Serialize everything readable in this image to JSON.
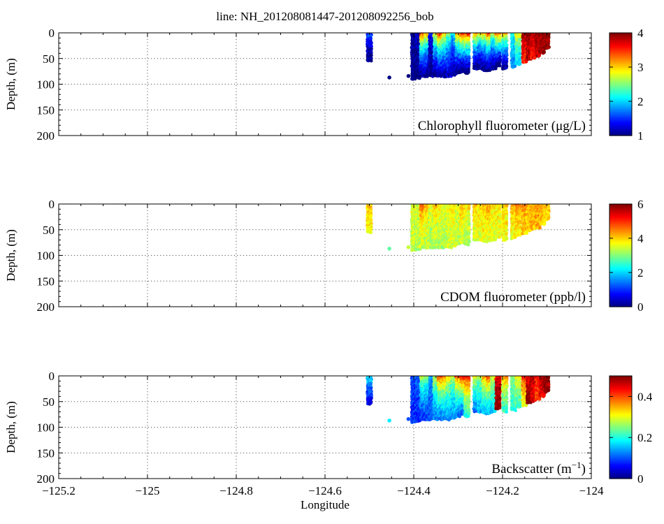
{
  "title": "line: NH_201208081447-201208092256_bob",
  "chart_data": [
    {
      "type": "scatter",
      "panel_label": "Chlorophyll fluorometer (μg/L)",
      "xlabel": "",
      "ylabel": "Depth, (m)",
      "xlim": [
        -125.2,
        -124
      ],
      "ylim": [
        200,
        0
      ],
      "y_reversed": true,
      "grid": true,
      "yticks": [
        0,
        50,
        100,
        150,
        200
      ],
      "xticks": [
        -125.2,
        -125,
        -124.8,
        -124.6,
        -124.4,
        -124.2,
        -124
      ],
      "show_xtick_labels": false,
      "colorbar": {
        "colormap": "jet",
        "min": 1,
        "max": 4,
        "ticks": [
          1,
          2,
          3,
          4
        ]
      },
      "profiles": [
        {
          "x": -124.5,
          "depth": [
            0,
            55
          ],
          "top": 1.8,
          "bottom": 1.0
        },
        {
          "x": -124.455,
          "depth": [
            87,
            87
          ],
          "top": 1.0,
          "bottom": 1.0
        },
        {
          "x": -124.412,
          "depth": [
            84,
            84
          ],
          "top": 1.0,
          "bottom": 1.0
        },
        {
          "x": -124.4,
          "depth": [
            0,
            92
          ],
          "top": 1.1,
          "bottom": 1.0
        },
        {
          "x": -124.39,
          "depth": [
            0,
            88
          ],
          "top": 1.2,
          "bottom": 1.0
        },
        {
          "x": -124.38,
          "depth": [
            0,
            85
          ],
          "top": 3.8,
          "bottom": 1.0
        },
        {
          "x": -124.37,
          "depth": [
            0,
            85
          ],
          "top": 3.5,
          "bottom": 1.0
        },
        {
          "x": -124.36,
          "depth": [
            0,
            85
          ],
          "top": 1.5,
          "bottom": 1.0
        },
        {
          "x": -124.35,
          "depth": [
            0,
            86
          ],
          "top": 3.2,
          "bottom": 1.0
        },
        {
          "x": -124.34,
          "depth": [
            0,
            86
          ],
          "top": 3.9,
          "bottom": 1.0
        },
        {
          "x": -124.33,
          "depth": [
            0,
            84
          ],
          "top": 3.4,
          "bottom": 1.1
        },
        {
          "x": -124.32,
          "depth": [
            0,
            84
          ],
          "top": 2.8,
          "bottom": 1.2
        },
        {
          "x": -124.31,
          "depth": [
            0,
            82
          ],
          "top": 2.3,
          "bottom": 1.1
        },
        {
          "x": -124.3,
          "depth": [
            0,
            80
          ],
          "top": 3.6,
          "bottom": 1.0
        },
        {
          "x": -124.29,
          "depth": [
            0,
            75
          ],
          "top": 4.0,
          "bottom": 1.0
        },
        {
          "x": -124.28,
          "depth": [
            0,
            78
          ],
          "top": 4.0,
          "bottom": 1.0
        },
        {
          "x": -124.26,
          "depth": [
            0,
            70
          ],
          "top": 3.6,
          "bottom": 1.0
        },
        {
          "x": -124.25,
          "depth": [
            0,
            70
          ],
          "top": 3.2,
          "bottom": 1.0
        },
        {
          "x": -124.24,
          "depth": [
            0,
            72
          ],
          "top": 3.4,
          "bottom": 1.0
        },
        {
          "x": -124.23,
          "depth": [
            0,
            72
          ],
          "top": 3.9,
          "bottom": 1.0
        },
        {
          "x": -124.22,
          "depth": [
            0,
            70
          ],
          "top": 3.0,
          "bottom": 1.1
        },
        {
          "x": -124.21,
          "depth": [
            0,
            65
          ],
          "top": 3.8,
          "bottom": 1.0
        },
        {
          "x": -124.195,
          "depth": [
            0,
            70
          ],
          "top": 3.5,
          "bottom": 1.0
        },
        {
          "x": -124.175,
          "depth": [
            0,
            68
          ],
          "top": 2.2,
          "bottom": 1.8
        },
        {
          "x": -124.165,
          "depth": [
            0,
            60
          ],
          "top": 3.0,
          "bottom": 2.0
        },
        {
          "x": -124.15,
          "depth": [
            0,
            58
          ],
          "top": 4.0,
          "bottom": 3.5
        },
        {
          "x": -124.14,
          "depth": [
            0,
            52
          ],
          "top": 4.0,
          "bottom": 3.8
        },
        {
          "x": -124.13,
          "depth": [
            0,
            50
          ],
          "top": 4.0,
          "bottom": 3.6
        },
        {
          "x": -124.12,
          "depth": [
            0,
            45
          ],
          "top": 4.0,
          "bottom": 3.8
        },
        {
          "x": -124.11,
          "depth": [
            0,
            40
          ],
          "top": 4.0,
          "bottom": 3.9
        },
        {
          "x": -124.1,
          "depth": [
            0,
            32
          ],
          "top": 4.0,
          "bottom": 3.9
        }
      ]
    },
    {
      "type": "scatter",
      "panel_label": "CDOM fluorometer (ppb/l)",
      "xlabel": "",
      "ylabel": "Depth, (m)",
      "xlim": [
        -125.2,
        -124
      ],
      "ylim": [
        200,
        0
      ],
      "y_reversed": true,
      "grid": true,
      "yticks": [
        0,
        50,
        100,
        150,
        200
      ],
      "xticks": [
        -125.2,
        -125,
        -124.8,
        -124.6,
        -124.4,
        -124.2,
        -124
      ],
      "show_xtick_labels": false,
      "colorbar": {
        "colormap": "jet",
        "min": 0,
        "max": 6,
        "ticks": [
          0,
          2,
          4,
          6
        ]
      },
      "profiles": [
        {
          "x": -124.5,
          "depth": [
            0,
            55
          ],
          "top": 4.2,
          "bottom": 3.8
        },
        {
          "x": -124.455,
          "depth": [
            87,
            87
          ],
          "top": 2.8,
          "bottom": 2.8
        },
        {
          "x": -124.412,
          "depth": [
            84,
            84
          ],
          "top": 3.4,
          "bottom": 3.4
        },
        {
          "x": -124.4,
          "depth": [
            0,
            92
          ],
          "top": 3.6,
          "bottom": 3.4
        },
        {
          "x": -124.39,
          "depth": [
            0,
            88
          ],
          "top": 3.5,
          "bottom": 3.3
        },
        {
          "x": -124.38,
          "depth": [
            0,
            85
          ],
          "top": 4.8,
          "bottom": 3.4
        },
        {
          "x": -124.37,
          "depth": [
            0,
            85
          ],
          "top": 4.4,
          "bottom": 3.3
        },
        {
          "x": -124.36,
          "depth": [
            0,
            85
          ],
          "top": 3.7,
          "bottom": 3.2
        },
        {
          "x": -124.35,
          "depth": [
            0,
            86
          ],
          "top": 4.2,
          "bottom": 3.3
        },
        {
          "x": -124.34,
          "depth": [
            0,
            86
          ],
          "top": 4.0,
          "bottom": 3.2
        },
        {
          "x": -124.33,
          "depth": [
            0,
            84
          ],
          "top": 3.6,
          "bottom": 3.3
        },
        {
          "x": -124.32,
          "depth": [
            0,
            84
          ],
          "top": 3.8,
          "bottom": 3.4
        },
        {
          "x": -124.31,
          "depth": [
            0,
            82
          ],
          "top": 3.9,
          "bottom": 3.5
        },
        {
          "x": -124.3,
          "depth": [
            0,
            80
          ],
          "top": 3.7,
          "bottom": 3.3
        },
        {
          "x": -124.29,
          "depth": [
            0,
            75
          ],
          "top": 4.3,
          "bottom": 3.4
        },
        {
          "x": -124.28,
          "depth": [
            0,
            78
          ],
          "top": 4.1,
          "bottom": 3.2
        },
        {
          "x": -124.26,
          "depth": [
            0,
            70
          ],
          "top": 4.4,
          "bottom": 3.5
        },
        {
          "x": -124.25,
          "depth": [
            0,
            70
          ],
          "top": 4.0,
          "bottom": 3.6
        },
        {
          "x": -124.24,
          "depth": [
            0,
            72
          ],
          "top": 4.2,
          "bottom": 3.7
        },
        {
          "x": -124.23,
          "depth": [
            0,
            72
          ],
          "top": 4.5,
          "bottom": 3.6
        },
        {
          "x": -124.22,
          "depth": [
            0,
            70
          ],
          "top": 3.9,
          "bottom": 3.5
        },
        {
          "x": -124.21,
          "depth": [
            0,
            65
          ],
          "top": 4.0,
          "bottom": 3.6
        },
        {
          "x": -124.195,
          "depth": [
            0,
            70
          ],
          "top": 4.0,
          "bottom": 3.7
        },
        {
          "x": -124.175,
          "depth": [
            0,
            68
          ],
          "top": 4.3,
          "bottom": 3.6
        },
        {
          "x": -124.165,
          "depth": [
            0,
            60
          ],
          "top": 4.6,
          "bottom": 3.8
        },
        {
          "x": -124.15,
          "depth": [
            0,
            58
          ],
          "top": 4.5,
          "bottom": 4.0
        },
        {
          "x": -124.14,
          "depth": [
            0,
            52
          ],
          "top": 4.2,
          "bottom": 4.0
        },
        {
          "x": -124.13,
          "depth": [
            0,
            50
          ],
          "top": 4.3,
          "bottom": 4.1
        },
        {
          "x": -124.12,
          "depth": [
            0,
            45
          ],
          "top": 4.4,
          "bottom": 4.2
        },
        {
          "x": -124.11,
          "depth": [
            0,
            40
          ],
          "top": 4.2,
          "bottom": 4.1
        },
        {
          "x": -124.1,
          "depth": [
            0,
            32
          ],
          "top": 4.1,
          "bottom": 4.0
        }
      ]
    },
    {
      "type": "scatter",
      "panel_label": "Backscatter (m",
      "panel_label_sup": "−1",
      "panel_label_end": ")",
      "xlabel": "Longitude",
      "ylabel": "Depth, (m)",
      "xlim": [
        -125.2,
        -124
      ],
      "ylim": [
        200,
        0
      ],
      "y_reversed": true,
      "grid": true,
      "yticks": [
        0,
        50,
        100,
        150,
        200
      ],
      "xticks": [
        -125.2,
        -125,
        -124.8,
        -124.6,
        -124.4,
        -124.2,
        -124
      ],
      "xtick_labels": [
        "−125.2",
        "−125",
        "−124.8",
        "−124.6",
        "−124.4",
        "−124.2",
        "−124"
      ],
      "show_xtick_labels": true,
      "colorbar": {
        "colormap": "jet",
        "min": 0,
        "max": 0.5,
        "ticks": [
          0,
          0.2,
          0.4
        ]
      },
      "profiles": [
        {
          "x": -124.5,
          "depth": [
            0,
            55
          ],
          "top": 0.22,
          "bottom": 0.05
        },
        {
          "x": -124.455,
          "depth": [
            87,
            87
          ],
          "top": 0.18,
          "bottom": 0.18
        },
        {
          "x": -124.412,
          "depth": [
            84,
            84
          ],
          "top": 0.1,
          "bottom": 0.1
        },
        {
          "x": -124.4,
          "depth": [
            0,
            92
          ],
          "top": 0.1,
          "bottom": 0.08
        },
        {
          "x": -124.39,
          "depth": [
            0,
            88
          ],
          "top": 0.12,
          "bottom": 0.08
        },
        {
          "x": -124.38,
          "depth": [
            0,
            85
          ],
          "top": 0.3,
          "bottom": 0.08
        },
        {
          "x": -124.37,
          "depth": [
            0,
            85
          ],
          "top": 0.28,
          "bottom": 0.09
        },
        {
          "x": -124.36,
          "depth": [
            0,
            85
          ],
          "top": 0.15,
          "bottom": 0.1
        },
        {
          "x": -124.35,
          "depth": [
            0,
            86
          ],
          "top": 0.32,
          "bottom": 0.12
        },
        {
          "x": -124.34,
          "depth": [
            0,
            86
          ],
          "top": 0.45,
          "bottom": 0.12
        },
        {
          "x": -124.33,
          "depth": [
            0,
            84
          ],
          "top": 0.42,
          "bottom": 0.13
        },
        {
          "x": -124.32,
          "depth": [
            0,
            84
          ],
          "top": 0.36,
          "bottom": 0.14
        },
        {
          "x": -124.31,
          "depth": [
            0,
            82
          ],
          "top": 0.3,
          "bottom": 0.13
        },
        {
          "x": -124.3,
          "depth": [
            0,
            80
          ],
          "top": 0.44,
          "bottom": 0.12
        },
        {
          "x": -124.29,
          "depth": [
            0,
            75
          ],
          "top": 0.5,
          "bottom": 0.11
        },
        {
          "x": -124.28,
          "depth": [
            0,
            78
          ],
          "top": 0.48,
          "bottom": 0.2
        },
        {
          "x": -124.26,
          "depth": [
            0,
            70
          ],
          "top": 0.35,
          "bottom": 0.12
        },
        {
          "x": -124.25,
          "depth": [
            0,
            70
          ],
          "top": 0.3,
          "bottom": 0.15
        },
        {
          "x": -124.24,
          "depth": [
            0,
            72
          ],
          "top": 0.4,
          "bottom": 0.16
        },
        {
          "x": -124.23,
          "depth": [
            0,
            72
          ],
          "top": 0.46,
          "bottom": 0.15
        },
        {
          "x": -124.22,
          "depth": [
            0,
            70
          ],
          "top": 0.32,
          "bottom": 0.17
        },
        {
          "x": -124.21,
          "depth": [
            0,
            65
          ],
          "top": 0.44,
          "bottom": 0.5
        },
        {
          "x": -124.195,
          "depth": [
            0,
            70
          ],
          "top": 0.4,
          "bottom": 0.2
        },
        {
          "x": -124.175,
          "depth": [
            0,
            68
          ],
          "top": 0.28,
          "bottom": 0.2
        },
        {
          "x": -124.165,
          "depth": [
            0,
            60
          ],
          "top": 0.33,
          "bottom": 0.22
        },
        {
          "x": -124.15,
          "depth": [
            0,
            58
          ],
          "top": 0.46,
          "bottom": 0.3
        },
        {
          "x": -124.14,
          "depth": [
            0,
            52
          ],
          "top": 0.42,
          "bottom": 0.5
        },
        {
          "x": -124.13,
          "depth": [
            0,
            50
          ],
          "top": 0.48,
          "bottom": 0.45
        },
        {
          "x": -124.12,
          "depth": [
            0,
            45
          ],
          "top": 0.44,
          "bottom": 0.4
        },
        {
          "x": -124.11,
          "depth": [
            0,
            40
          ],
          "top": 0.5,
          "bottom": 0.45
        },
        {
          "x": -124.1,
          "depth": [
            0,
            32
          ],
          "top": 0.5,
          "bottom": 0.48
        }
      ]
    }
  ]
}
